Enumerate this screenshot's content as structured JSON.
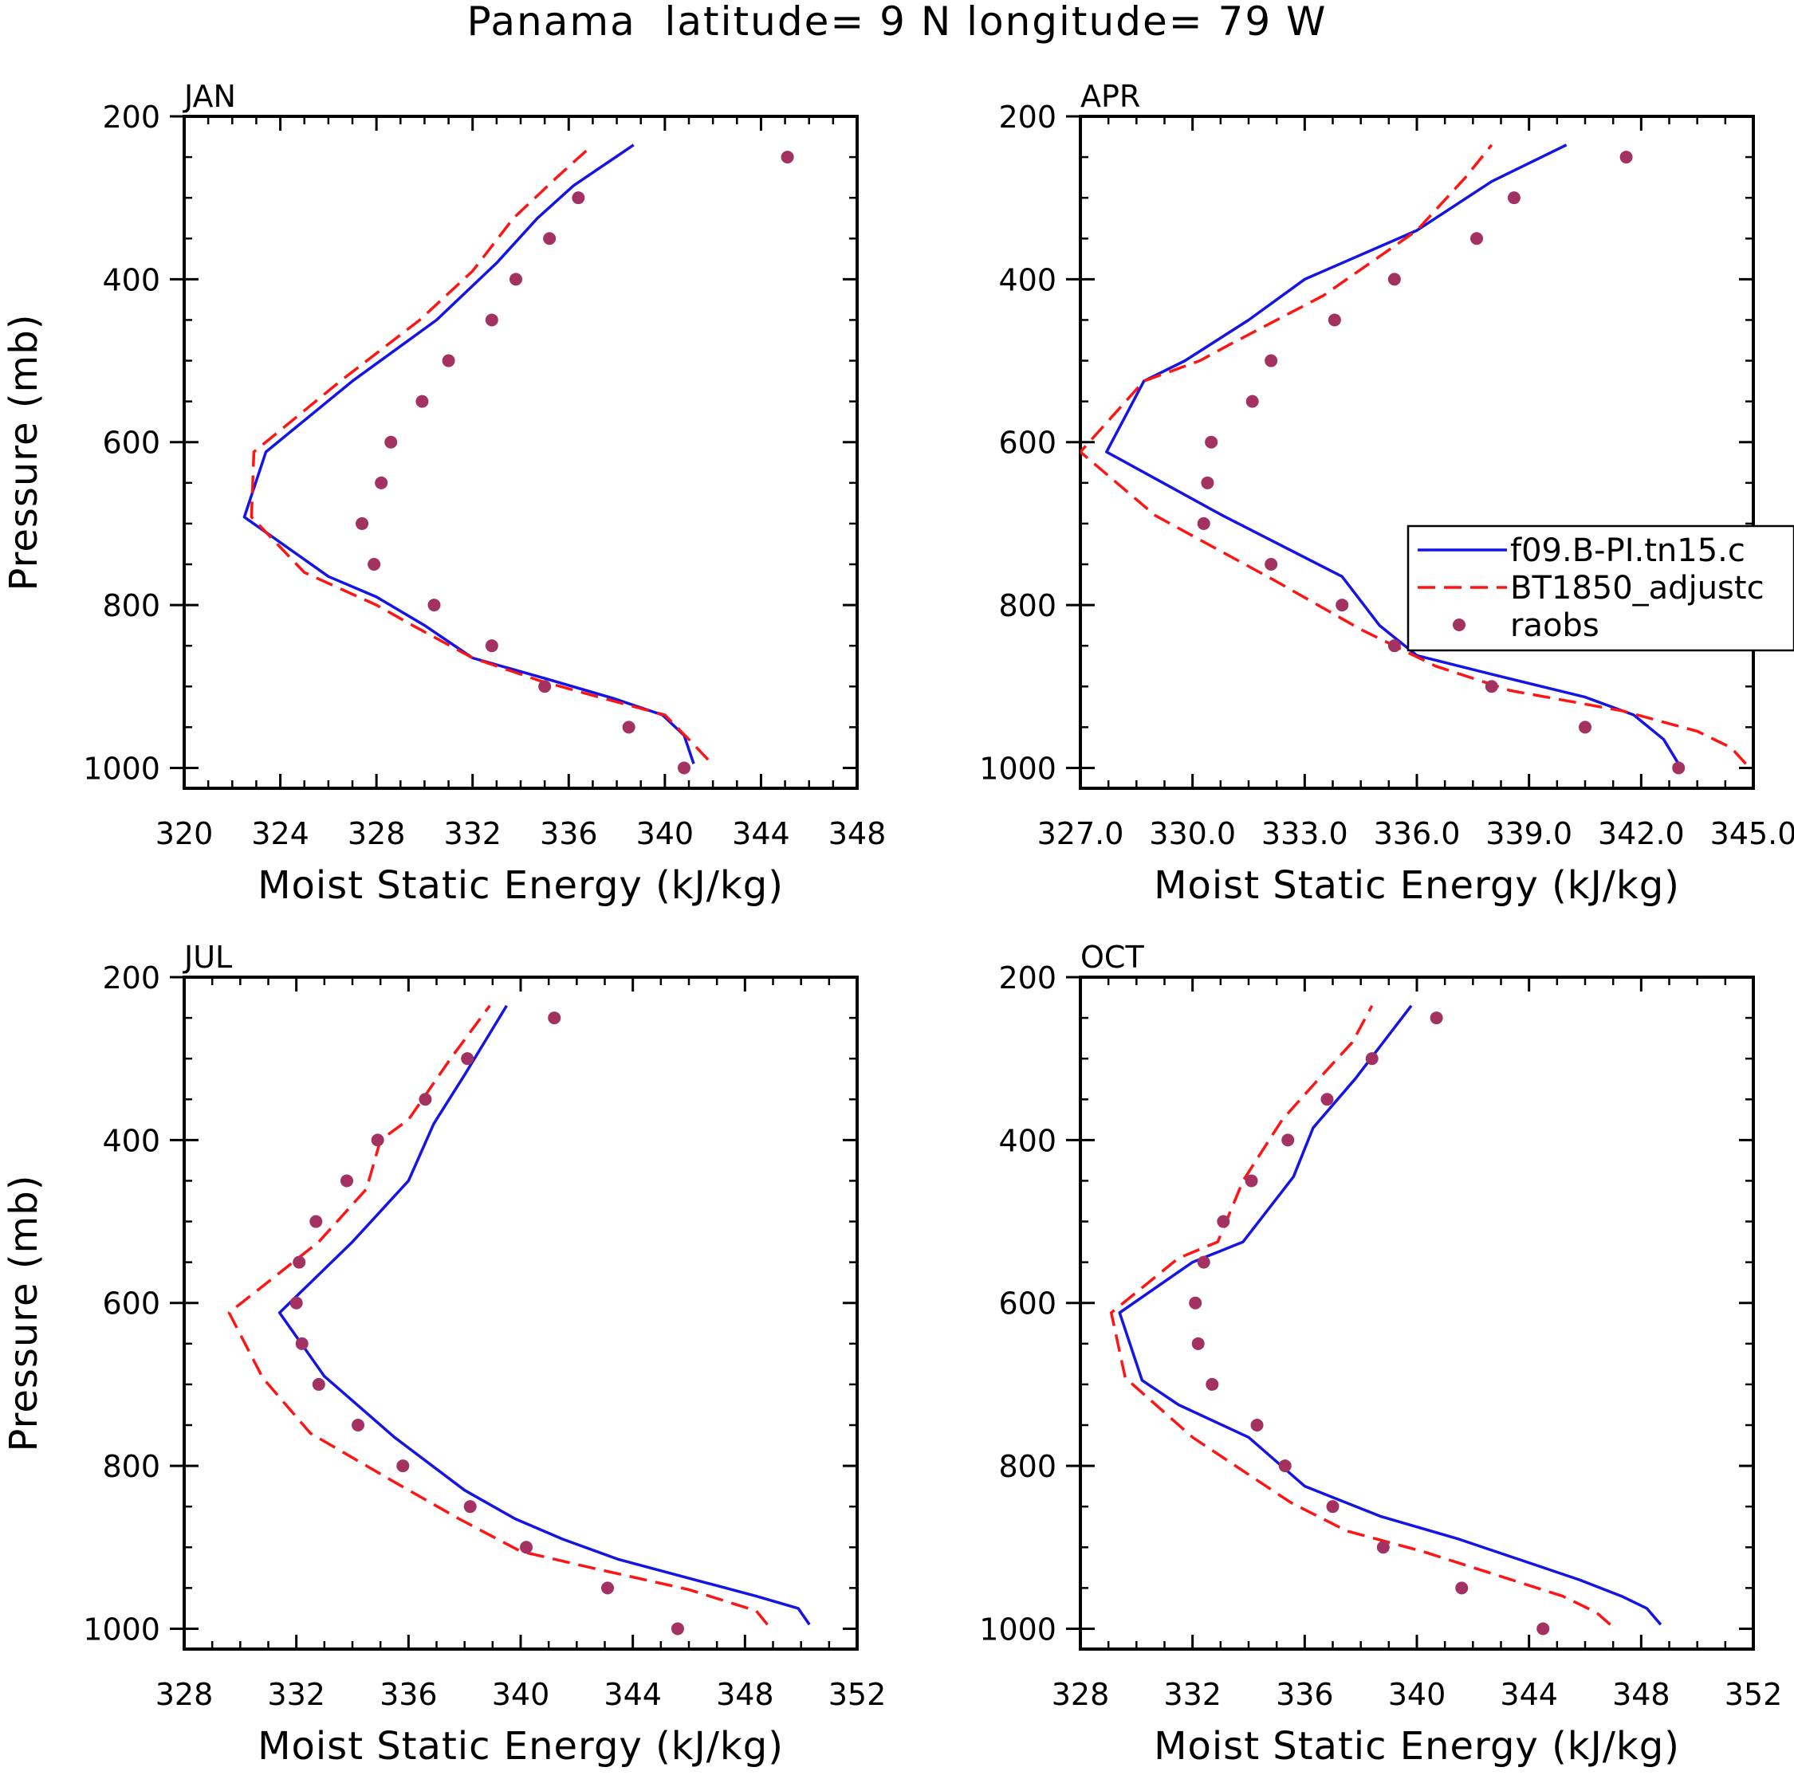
{
  "figure_title": "Panama  latitude= 9 N longitude= 79 W",
  "chart_data": [
    {
      "type": "line",
      "panel_title": "JAN",
      "xlabel": "Moist Static Energy (kJ/kg)",
      "ylabel": "Pressure (mb)",
      "xlim": [
        320,
        348
      ],
      "ylim": [
        1025,
        200
      ],
      "x_ticks": [
        320,
        324,
        328,
        332,
        336,
        340,
        344,
        348
      ],
      "x_tick_labels": [
        "320",
        "324",
        "328",
        "332",
        "336",
        "340",
        "344",
        "348"
      ],
      "y_ticks": [
        200,
        400,
        600,
        800,
        1000
      ],
      "y_tick_labels": [
        "200",
        "400",
        "600",
        "800",
        "1000"
      ],
      "series": [
        {
          "name": "f09.B-PI.tn15.c",
          "style": "solid",
          "color": "#1414e6",
          "x": [
            341.2,
            340.8,
            339.9,
            337.9,
            335.0,
            332.0,
            330.0,
            328.0,
            326.0,
            322.5,
            323.4,
            327.0,
            330.5,
            333.0,
            334.7,
            336.2,
            338.7
          ],
          "y": [
            995,
            960,
            935,
            915,
            890,
            865,
            825,
            790,
            765,
            692,
            612,
            525,
            450,
            380,
            325,
            285,
            235
          ]
        },
        {
          "name": "BT1850_adjustc",
          "style": "dashed",
          "color": "#ff1414",
          "x": [
            341.8,
            341.0,
            340.0,
            337.5,
            334.8,
            332.0,
            329.5,
            328.0,
            325.0,
            322.8,
            322.9,
            326.5,
            329.8,
            332.0,
            333.7,
            335.5,
            337.0
          ],
          "y": [
            990,
            965,
            935,
            915,
            893,
            865,
            825,
            800,
            760,
            692,
            612,
            525,
            450,
            390,
            325,
            275,
            235
          ]
        },
        {
          "name": "raobs",
          "style": "markers",
          "color": "#a33262",
          "x": [
            340.8,
            338.5,
            335.0,
            332.8,
            330.4,
            327.9,
            327.4,
            328.2,
            328.6,
            329.9,
            331.0,
            332.8,
            333.8,
            335.2,
            336.4,
            345.1
          ],
          "y": [
            1000,
            950,
            900,
            850,
            800,
            750,
            700,
            650,
            600,
            550,
            500,
            450,
            400,
            350,
            300,
            250
          ]
        }
      ]
    },
    {
      "type": "line",
      "panel_title": "APR",
      "xlabel": "Moist Static Energy (kJ/kg)",
      "ylabel": "",
      "xlim": [
        327,
        345
      ],
      "ylim": [
        1025,
        200
      ],
      "x_ticks": [
        327,
        330,
        333,
        336,
        339,
        342,
        345
      ],
      "x_tick_labels": [
        "327.0",
        "330.0",
        "333.0",
        "336.0",
        "339.0",
        "342.0",
        "345.0"
      ],
      "y_ticks": [
        200,
        400,
        600,
        800,
        1000
      ],
      "y_tick_labels": [
        "200",
        "400",
        "600",
        "800",
        "1000"
      ],
      "series": [
        {
          "name": "f09.B-PI.tn15.c",
          "style": "solid",
          "color": "#1414e6",
          "x": [
            343.0,
            342.6,
            341.8,
            340.5,
            338.0,
            336.0,
            335.0,
            334.0,
            330.8,
            327.7,
            328.7,
            329.8,
            331.5,
            333.0,
            336.0,
            338.0,
            340.0
          ],
          "y": [
            995,
            965,
            935,
            913,
            885,
            862,
            825,
            765,
            690,
            612,
            525,
            500,
            450,
            400,
            340,
            280,
            235
          ]
        },
        {
          "name": "BT1850_adjustc",
          "style": "dashed",
          "color": "#ff1414",
          "x": [
            344.8,
            344.4,
            343.5,
            341.5,
            338.5,
            336.5,
            334.5,
            332.2,
            329.0,
            327.0,
            328.7,
            330.2,
            331.0,
            333.5,
            336.0,
            337.3,
            338.0
          ],
          "y": [
            995,
            975,
            955,
            930,
            905,
            875,
            830,
            770,
            690,
            612,
            525,
            500,
            480,
            420,
            340,
            275,
            235
          ]
        },
        {
          "name": "raobs",
          "style": "markers",
          "color": "#a33262",
          "x": [
            343.0,
            340.5,
            338.0,
            335.4,
            334.0,
            332.1,
            330.3,
            330.4,
            330.5,
            331.6,
            332.1,
            333.8,
            335.4,
            337.6,
            338.6,
            341.6
          ],
          "y": [
            1000,
            950,
            900,
            850,
            800,
            750,
            700,
            650,
            600,
            550,
            500,
            450,
            400,
            350,
            300,
            250
          ]
        }
      ],
      "legend": {
        "entries": [
          {
            "label": "f09.B-PI.tn15.c",
            "style": "solid"
          },
          {
            "label": "BT1850_adjustc",
            "style": "dashed"
          },
          {
            "label": "raobs",
            "style": "markers"
          }
        ],
        "placement": "middle-right"
      }
    },
    {
      "type": "line",
      "panel_title": "JUL",
      "xlabel": "Moist Static Energy (kJ/kg)",
      "ylabel": "Pressure (mb)",
      "xlim": [
        328,
        352
      ],
      "ylim": [
        1025,
        200
      ],
      "x_ticks": [
        328,
        332,
        336,
        340,
        344,
        348,
        352
      ],
      "x_tick_labels": [
        "328",
        "332",
        "336",
        "340",
        "344",
        "348",
        "352"
      ],
      "y_ticks": [
        200,
        400,
        600,
        800,
        1000
      ],
      "y_tick_labels": [
        "200",
        "400",
        "600",
        "800",
        "1000"
      ],
      "series": [
        {
          "name": "f09.B-PI.tn15.c",
          "style": "solid",
          "color": "#1414e6",
          "x": [
            350.3,
            349.9,
            348.4,
            343.5,
            341.5,
            339.8,
            338.0,
            335.5,
            333.0,
            331.4,
            334.0,
            336.0,
            336.9,
            338.0,
            339.5
          ],
          "y": [
            995,
            975,
            960,
            915,
            890,
            865,
            830,
            765,
            690,
            612,
            525,
            450,
            380,
            320,
            235
          ]
        },
        {
          "name": "BT1850_adjustc",
          "style": "dashed",
          "color": "#ff1414",
          "x": [
            348.8,
            348.4,
            346.0,
            342.5,
            340.0,
            337.8,
            335.5,
            332.5,
            330.8,
            329.6,
            332.8,
            334.5,
            335.0,
            336.0,
            337.5,
            338.9
          ],
          "y": [
            995,
            978,
            952,
            925,
            905,
            865,
            820,
            760,
            692,
            612,
            525,
            460,
            400,
            375,
            300,
            235
          ]
        },
        {
          "name": "raobs",
          "style": "markers",
          "color": "#a33262",
          "x": [
            345.6,
            343.1,
            340.2,
            338.2,
            335.8,
            334.2,
            332.8,
            332.2,
            332.0,
            332.1,
            332.7,
            333.8,
            334.9,
            336.6,
            338.1,
            341.2
          ],
          "y": [
            1000,
            950,
            900,
            850,
            800,
            750,
            700,
            650,
            600,
            550,
            500,
            450,
            400,
            350,
            300,
            250
          ]
        }
      ]
    },
    {
      "type": "line",
      "panel_title": "OCT",
      "xlabel": "Moist Static Energy (kJ/kg)",
      "ylabel": "",
      "xlim": [
        328,
        352
      ],
      "ylim": [
        1025,
        200
      ],
      "x_ticks": [
        328,
        332,
        336,
        340,
        344,
        348,
        352
      ],
      "x_tick_labels": [
        "328",
        "332",
        "336",
        "340",
        "344",
        "348",
        "352"
      ],
      "y_ticks": [
        200,
        400,
        600,
        800,
        1000
      ],
      "y_tick_labels": [
        "200",
        "400",
        "600",
        "800",
        "1000"
      ],
      "series": [
        {
          "name": "f09.B-PI.tn15.c",
          "style": "solid",
          "color": "#1414e6",
          "x": [
            348.7,
            348.2,
            347.3,
            345.8,
            341.5,
            338.7,
            336.0,
            334.0,
            331.5,
            330.2,
            329.4,
            332.0,
            333.8,
            335.6,
            336.3,
            337.8,
            339.8
          ],
          "y": [
            995,
            975,
            960,
            940,
            890,
            862,
            825,
            765,
            725,
            695,
            612,
            550,
            525,
            445,
            385,
            325,
            235
          ]
        },
        {
          "name": "BT1850_adjustc",
          "style": "dashed",
          "color": "#ff1414",
          "x": [
            346.9,
            346.4,
            345.2,
            340.2,
            337.5,
            335.5,
            332.0,
            329.6,
            329.1,
            331.5,
            332.9,
            333.8,
            335.2,
            336.5,
            337.7,
            338.4
          ],
          "y": [
            995,
            980,
            960,
            905,
            880,
            845,
            765,
            692,
            612,
            545,
            525,
            450,
            375,
            325,
            280,
            235
          ]
        },
        {
          "name": "raobs",
          "style": "markers",
          "color": "#a33262",
          "x": [
            344.5,
            341.6,
            338.8,
            337.0,
            335.3,
            334.3,
            332.7,
            332.2,
            332.1,
            332.4,
            333.1,
            334.1,
            335.4,
            336.8,
            338.4,
            340.7
          ],
          "y": [
            1000,
            950,
            900,
            850,
            800,
            750,
            700,
            650,
            600,
            550,
            500,
            450,
            400,
            350,
            300,
            250
          ]
        }
      ]
    }
  ]
}
